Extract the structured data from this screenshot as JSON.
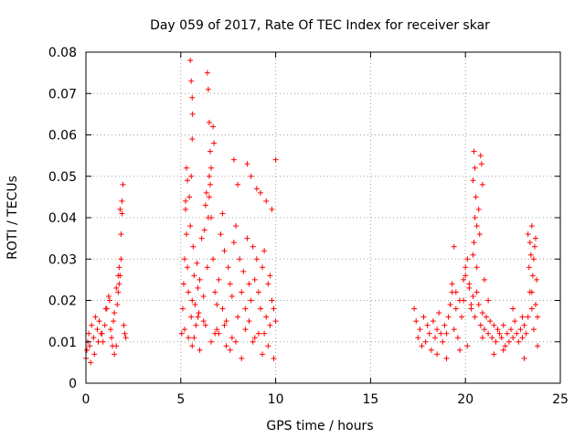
{
  "chart_data": {
    "type": "scatter",
    "title": "Day 059 of 2017, Rate Of TEC Index for receiver skar",
    "xlabel": "GPS time / hours",
    "ylabel": "ROTI / TECUs",
    "xlim": [
      0,
      25
    ],
    "ylim": [
      0,
      0.08
    ],
    "x_ticks": [
      "0",
      "5",
      "10",
      "15",
      "20",
      "25"
    ],
    "y_ticks": [
      "0",
      "0.01",
      "0.02",
      "0.03",
      "0.04",
      "0.05",
      "0.06",
      "0.07",
      "0.08"
    ],
    "x_tick_values": [
      0,
      5,
      10,
      15,
      20,
      25
    ],
    "y_tick_values": [
      0,
      0.01,
      0.02,
      0.03,
      0.04,
      0.05,
      0.06,
      0.07,
      0.08
    ],
    "grid": true,
    "marker": "+",
    "color": "#ff0000",
    "series": [
      {
        "x": [
          0.0,
          0.05,
          0.1,
          0.15,
          0.2,
          0.3,
          0.4,
          0.5,
          0.6,
          0.7,
          0.8,
          0.9,
          1.0,
          1.1,
          1.2,
          1.3,
          1.4,
          1.5,
          1.6,
          1.7,
          1.75,
          1.8,
          1.85,
          1.9,
          1.95,
          2.0,
          2.05,
          2.1,
          0.25,
          0.45,
          0.65,
          0.85,
          1.05,
          1.25,
          1.45,
          1.65,
          1.7,
          1.8,
          1.9,
          1.85,
          1.75,
          1.6,
          1.5,
          1.35,
          5.05,
          5.1,
          5.15,
          5.2,
          5.25,
          5.3,
          5.35,
          5.4,
          5.45,
          5.5,
          5.55,
          5.6,
          5.65,
          5.7,
          5.75,
          5.8,
          5.85,
          5.9,
          5.95,
          6.0,
          6.1,
          6.2,
          6.3,
          6.4,
          6.5,
          6.6,
          6.7,
          6.8,
          6.9,
          7.0,
          7.1,
          7.2,
          7.3,
          7.4,
          7.5,
          7.6,
          7.7,
          7.8,
          7.9,
          8.0,
          8.1,
          8.2,
          8.3,
          8.4,
          8.5,
          8.6,
          8.7,
          8.8,
          8.9,
          9.0,
          9.1,
          9.2,
          9.3,
          9.4,
          9.5,
          9.6,
          9.7,
          9.8,
          9.9,
          10.0,
          5.5,
          5.55,
          5.6,
          5.62,
          5.6,
          5.55,
          6.4,
          6.45,
          6.5,
          6.55,
          6.6,
          6.5,
          6.45,
          6.55,
          6.3,
          6.25,
          6.35,
          6.7,
          6.75,
          5.3,
          5.35,
          5.25,
          7.2,
          7.8,
          8.0,
          8.5,
          8.7,
          9.0,
          9.2,
          9.5,
          9.8,
          10.0,
          5.4,
          5.6,
          6.0,
          6.6,
          7.0,
          7.4,
          7.6,
          8.2,
          8.8,
          9.3,
          9.6,
          9.9,
          5.2,
          5.7,
          6.2,
          6.8,
          7.3,
          7.9,
          8.4,
          8.9,
          9.4,
          9.7,
          5.9,
          6.9,
          7.7,
          8.6,
          9.1,
          17.3,
          17.4,
          17.5,
          17.6,
          17.7,
          17.8,
          17.9,
          18.0,
          18.1,
          18.2,
          18.3,
          18.4,
          18.5,
          18.6,
          18.7,
          18.8,
          18.9,
          19.0,
          19.1,
          19.2,
          19.3,
          19.4,
          19.5,
          19.6,
          19.7,
          19.8,
          19.9,
          20.0,
          20.1,
          20.2,
          20.3,
          20.4,
          20.5,
          20.6,
          20.7,
          20.8,
          20.9,
          21.0,
          21.1,
          21.2,
          21.3,
          21.4,
          21.5,
          21.6,
          21.7,
          21.8,
          21.9,
          22.0,
          22.1,
          22.2,
          22.3,
          22.4,
          22.5,
          22.6,
          22.7,
          22.8,
          22.9,
          23.0,
          23.1,
          23.2,
          23.3,
          23.4,
          23.5,
          23.6,
          23.7,
          23.8,
          20.4,
          20.45,
          20.5,
          20.55,
          20.6,
          20.8,
          20.85,
          20.9,
          20.4,
          20.5,
          20.7,
          20.75,
          20.45,
          20.6,
          19.3,
          19.4,
          19.5,
          19.9,
          20.0,
          23.3,
          23.4,
          23.5,
          23.6,
          23.7,
          23.35,
          23.45,
          23.55,
          23.65,
          23.75,
          23.5,
          20.2,
          20.3,
          21.0,
          21.2,
          22.5,
          23.0,
          18.5,
          19.0,
          19.7,
          20.1,
          20.9,
          21.5,
          22.0,
          23.1,
          23.8
        ],
        "y": [
          0.006,
          0.008,
          0.01,
          0.012,
          0.009,
          0.014,
          0.011,
          0.016,
          0.013,
          0.015,
          0.012,
          0.01,
          0.014,
          0.018,
          0.021,
          0.013,
          0.009,
          0.017,
          0.023,
          0.022,
          0.028,
          0.026,
          0.036,
          0.041,
          0.048,
          0.014,
          0.012,
          0.011,
          0.005,
          0.007,
          0.01,
          0.012,
          0.018,
          0.02,
          0.015,
          0.019,
          0.026,
          0.042,
          0.044,
          0.03,
          0.024,
          0.009,
          0.007,
          0.011,
          0.012,
          0.018,
          0.024,
          0.03,
          0.042,
          0.036,
          0.028,
          0.022,
          0.045,
          0.038,
          0.016,
          0.02,
          0.033,
          0.026,
          0.019,
          0.014,
          0.029,
          0.023,
          0.017,
          0.025,
          0.035,
          0.021,
          0.014,
          0.028,
          0.05,
          0.04,
          0.03,
          0.022,
          0.019,
          0.025,
          0.036,
          0.018,
          0.032,
          0.015,
          0.028,
          0.024,
          0.021,
          0.034,
          0.038,
          0.016,
          0.03,
          0.022,
          0.027,
          0.018,
          0.035,
          0.024,
          0.02,
          0.033,
          0.025,
          0.03,
          0.022,
          0.018,
          0.028,
          0.032,
          0.016,
          0.024,
          0.026,
          0.02,
          0.018,
          0.015,
          0.078,
          0.073,
          0.069,
          0.065,
          0.059,
          0.05,
          0.075,
          0.071,
          0.063,
          0.056,
          0.052,
          0.045,
          0.04,
          0.048,
          0.043,
          0.037,
          0.046,
          0.062,
          0.058,
          0.052,
          0.049,
          0.044,
          0.041,
          0.054,
          0.048,
          0.053,
          0.05,
          0.047,
          0.046,
          0.044,
          0.042,
          0.054,
          0.011,
          0.009,
          0.008,
          0.01,
          0.012,
          0.009,
          0.008,
          0.006,
          0.01,
          0.007,
          0.009,
          0.006,
          0.013,
          0.011,
          0.015,
          0.012,
          0.014,
          0.01,
          0.013,
          0.011,
          0.012,
          0.014,
          0.016,
          0.013,
          0.011,
          0.015,
          0.012,
          0.018,
          0.015,
          0.011,
          0.013,
          0.009,
          0.016,
          0.01,
          0.014,
          0.012,
          0.008,
          0.015,
          0.011,
          0.013,
          0.017,
          0.012,
          0.01,
          0.014,
          0.012,
          0.016,
          0.019,
          0.022,
          0.013,
          0.018,
          0.011,
          0.02,
          0.016,
          0.025,
          0.028,
          0.03,
          0.024,
          0.018,
          0.021,
          0.016,
          0.022,
          0.019,
          0.014,
          0.017,
          0.013,
          0.016,
          0.012,
          0.015,
          0.011,
          0.014,
          0.01,
          0.013,
          0.012,
          0.011,
          0.014,
          0.009,
          0.012,
          0.01,
          0.013,
          0.011,
          0.015,
          0.012,
          0.01,
          0.013,
          0.011,
          0.014,
          0.012,
          0.016,
          0.022,
          0.018,
          0.013,
          0.019,
          0.016,
          0.049,
          0.056,
          0.052,
          0.045,
          0.038,
          0.055,
          0.053,
          0.048,
          0.031,
          0.04,
          0.042,
          0.036,
          0.034,
          0.028,
          0.024,
          0.033,
          0.022,
          0.02,
          0.026,
          0.036,
          0.034,
          0.038,
          0.03,
          0.035,
          0.028,
          0.031,
          0.026,
          0.033,
          0.025,
          0.022,
          0.023,
          0.019,
          0.025,
          0.02,
          0.018,
          0.016,
          0.007,
          0.006,
          0.008,
          0.009,
          0.011,
          0.007,
          0.008,
          0.006,
          0.009
        ]
      }
    ]
  }
}
